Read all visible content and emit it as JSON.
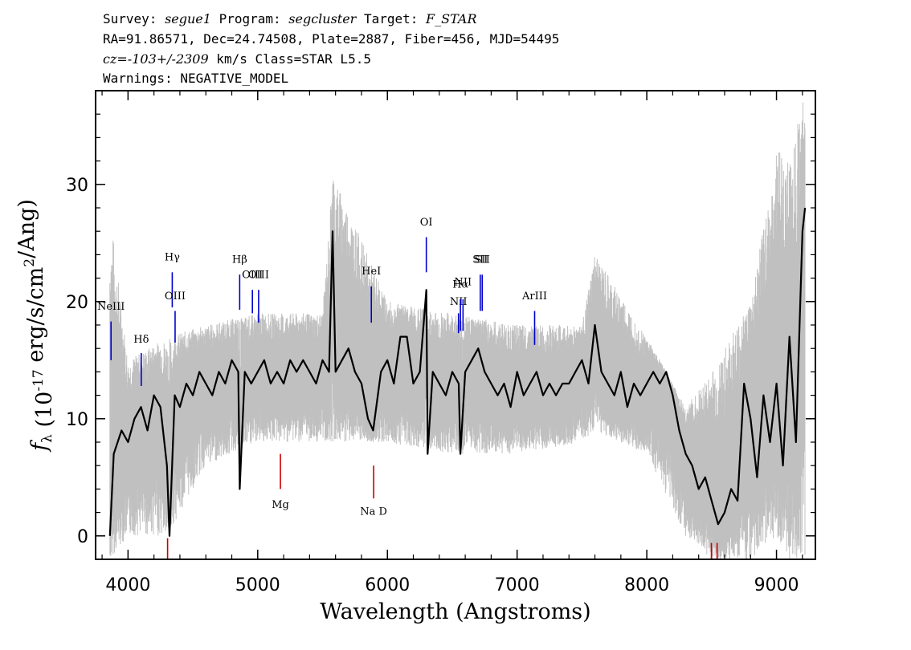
{
  "header": {
    "line1": {
      "survey_label": "Survey: ",
      "survey": "segue1",
      "program_label": " Program: ",
      "program": "segcluster",
      "target_label": " Target: ",
      "target": "F_STAR"
    },
    "line2": "RA=91.86571, Dec=24.74508, Plate=2887, Fiber=456, MJD=54495",
    "line3": {
      "cz": "cz=-103+/-2309",
      "rest": " km/s Class=STAR L5.5"
    },
    "line4": "Warnings: NEGATIVE_MODEL"
  },
  "chart_data": {
    "type": "line",
    "xlabel": "Wavelength (Angstroms)",
    "ylabel": "f_λ (10^-17 erg/s/cm^2/Ang)",
    "xlim": [
      3750,
      9300
    ],
    "ylim": [
      -2,
      38
    ],
    "x_ticks": [
      4000,
      5000,
      6000,
      7000,
      8000,
      9000
    ],
    "y_ticks": [
      0,
      10,
      20,
      30
    ],
    "grid": false,
    "series": [
      {
        "style": "black-line",
        "color": "#000000",
        "x": [
          3860,
          3890,
          3950,
          4000,
          4050,
          4100,
          4150,
          4200,
          4250,
          4300,
          4320,
          4360,
          4400,
          4450,
          4500,
          4550,
          4600,
          4650,
          4700,
          4750,
          4800,
          4850,
          4861,
          4900,
          4950,
          5000,
          5050,
          5100,
          5150,
          5200,
          5250,
          5300,
          5350,
          5400,
          5450,
          5500,
          5550,
          5577,
          5600,
          5650,
          5700,
          5750,
          5800,
          5850,
          5890,
          5950,
          6000,
          6050,
          6100,
          6150,
          6200,
          6250,
          6300,
          6310,
          6350,
          6400,
          6450,
          6500,
          6550,
          6563,
          6600,
          6650,
          6700,
          6750,
          6800,
          6850,
          6900,
          6950,
          7000,
          7050,
          7100,
          7150,
          7200,
          7250,
          7300,
          7350,
          7400,
          7450,
          7500,
          7550,
          7600,
          7650,
          7700,
          7750,
          7800,
          7850,
          7900,
          7950,
          8000,
          8050,
          8100,
          8150,
          8200,
          8250,
          8300,
          8350,
          8400,
          8450,
          8500,
          8550,
          8600,
          8650,
          8700,
          8750,
          8800,
          8850,
          8900,
          8950,
          9000,
          9050,
          9100,
          9150,
          9200,
          9220
        ],
        "y": [
          0,
          7,
          9,
          8,
          10,
          11,
          9,
          12,
          11,
          6,
          0,
          12,
          11,
          13,
          12,
          14,
          13,
          12,
          14,
          13,
          15,
          14,
          4,
          14,
          13,
          14,
          15,
          13,
          14,
          13,
          15,
          14,
          15,
          14,
          13,
          15,
          14,
          26,
          14,
          15,
          16,
          14,
          13,
          10,
          9,
          14,
          15,
          13,
          17,
          17,
          13,
          14,
          21,
          7,
          14,
          13,
          12,
          14,
          13,
          7,
          14,
          15,
          16,
          14,
          13,
          12,
          13,
          11,
          14,
          12,
          13,
          14,
          12,
          13,
          12,
          13,
          13,
          14,
          15,
          13,
          18,
          14,
          13,
          12,
          14,
          11,
          13,
          12,
          13,
          14,
          13,
          14,
          12,
          9,
          7,
          6,
          4,
          5,
          3,
          1,
          2,
          4,
          3,
          13,
          10,
          5,
          12,
          8,
          13,
          6,
          17,
          8,
          26,
          28
        ]
      },
      {
        "style": "grey-error-band",
        "color": "#c0c0c0",
        "x": [
          3860,
          4000,
          4300,
          4600,
          5000,
          5500,
          5580,
          6000,
          6500,
          7000,
          7500,
          7600,
          8000,
          8300,
          8500,
          8800,
          9000,
          9100,
          9220
        ],
        "upper": [
          28,
          15,
          17,
          18,
          19,
          19,
          31,
          20,
          19,
          18,
          18,
          24,
          17,
          11,
          14,
          20,
          33,
          32,
          38
        ],
        "lower": [
          -2,
          0,
          0,
          6,
          8,
          8,
          8,
          8,
          7,
          7,
          8,
          9,
          7,
          0,
          -2,
          -2,
          0,
          -2,
          -2
        ]
      }
    ],
    "line_labels": [
      {
        "label": "NeIII",
        "wave": 3869,
        "color": "#0000cc",
        "top": 18.3,
        "bottom": 15.0,
        "text_y": 19.3
      },
      {
        "label": "Hδ",
        "wave": 4102,
        "color": "#0000cc",
        "top": 15.6,
        "bottom": 12.8,
        "text_y": 16.5
      },
      {
        "label": "Hγ",
        "wave": 4341,
        "color": "#0000cc",
        "top": 22.5,
        "bottom": 19.5,
        "text_y": 23.5
      },
      {
        "label": "OIII",
        "wave": 4363,
        "color": "#0000cc",
        "top": 19.2,
        "bottom": 16.5,
        "text_y": 20.2
      },
      {
        "label": "Hβ",
        "wave": 4861,
        "color": "#0000cc",
        "top": 22.3,
        "bottom": 19.3,
        "text_y": 23.3
      },
      {
        "label": "OIII",
        "wave": 4959,
        "color": "#0000cc",
        "top": 21.0,
        "bottom": 19.0,
        "text_y": 22.0
      },
      {
        "label": "OIII",
        "wave": 5007,
        "color": "#0000cc",
        "top": 21.0,
        "bottom": 18.2,
        "text_y": 22.0
      },
      {
        "label": "HeI",
        "wave": 5876,
        "color": "#0000cc",
        "top": 21.3,
        "bottom": 18.2,
        "text_y": 22.3
      },
      {
        "label": "OI",
        "wave": 6300,
        "color": "#0000cc",
        "top": 25.5,
        "bottom": 22.5,
        "text_y": 26.5
      },
      {
        "label": "NII",
        "wave": 6548,
        "color": "#0000cc",
        "top": 19.0,
        "bottom": 17.3,
        "text_y": 19.7
      },
      {
        "label": "Hα",
        "wave": 6563,
        "color": "#0000cc",
        "top": 20.2,
        "bottom": 17.5,
        "text_y": 21.2
      },
      {
        "label": "NII",
        "wave": 6583,
        "color": "#0000cc",
        "top": 20.2,
        "bottom": 17.5,
        "text_y": 21.4
      },
      {
        "label": "SII",
        "wave": 6716,
        "color": "#0000cc",
        "top": 22.3,
        "bottom": 19.2,
        "text_y": 23.3
      },
      {
        "label": "SII",
        "wave": 6731,
        "color": "#0000cc",
        "top": 22.3,
        "bottom": 19.2,
        "text_y": 23.3
      },
      {
        "label": "ArIII",
        "wave": 7135,
        "color": "#0000cc",
        "top": 19.2,
        "bottom": 16.3,
        "text_y": 20.2
      },
      {
        "label": "Mg",
        "wave": 5175,
        "color": "#cc0000",
        "top": 7.0,
        "bottom": 4.0,
        "text_y": 2.4
      },
      {
        "label": "Na D",
        "wave": 5894,
        "color": "#cc0000",
        "top": 6.0,
        "bottom": 3.2,
        "text_y": 1.8
      },
      {
        "label": "",
        "wave": 4305,
        "color": "#cc0000",
        "top": -0.2,
        "bottom": -2.0
      },
      {
        "label": "",
        "wave": 8498,
        "color": "#cc0000",
        "top": -0.6,
        "bottom": -2.0
      },
      {
        "label": "",
        "wave": 8542,
        "color": "#cc0000",
        "top": -0.6,
        "bottom": -2.0
      }
    ]
  }
}
